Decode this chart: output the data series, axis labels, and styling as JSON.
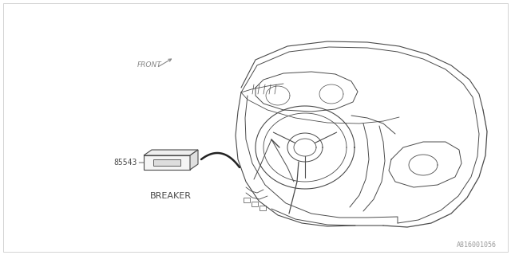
{
  "background_color": "#ffffff",
  "part_number_label": "85543",
  "part_name_label": "BREAKER",
  "front_label": "FRONT",
  "diagram_id": "A816001056",
  "line_color": "#4a4a4a",
  "text_color": "#4a4a4a",
  "font_size_label": 7,
  "font_size_id": 6,
  "font_size_part": 7,
  "font_size_front": 6.5,
  "fig_width": 6.4,
  "fig_height": 3.2,
  "dpi": 100
}
